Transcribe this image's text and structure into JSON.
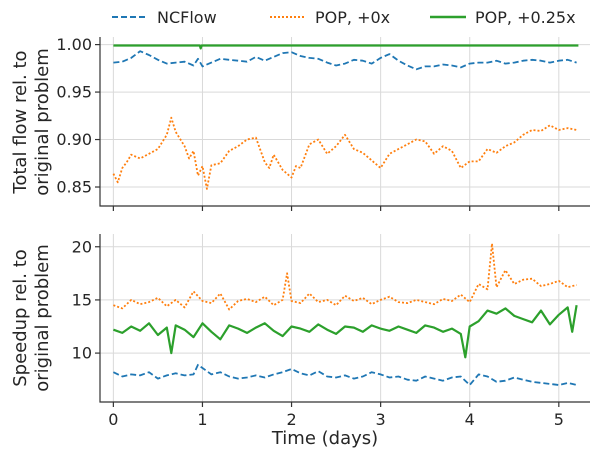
{
  "colors": {
    "ncflow": "#1f77b4",
    "pop0": "#ff7f0e",
    "pop025": "#2ca02c"
  },
  "chart_data": {
    "type": "line",
    "legend": {
      "placement": "top",
      "entries": [
        {
          "name": "NCFlow",
          "style": "dashed",
          "color": "#1f77b4"
        },
        {
          "name": "POP, +0x",
          "style": "dotted",
          "color": "#ff7f0e"
        },
        {
          "name": "POP, +0.25x",
          "style": "solid",
          "color": "#2ca02c"
        }
      ]
    },
    "xlabel": "Time (days)",
    "xlim": [
      -0.15,
      5.35
    ],
    "xticks": [
      0,
      1,
      2,
      3,
      4,
      5
    ],
    "xticklabels": [
      "0",
      "1",
      "2",
      "3",
      "4",
      "5"
    ],
    "grid": true,
    "panels": [
      {
        "ylabel": [
          "Total flow rel. to",
          "original problem"
        ],
        "ylim": [
          0.83,
          1.008
        ],
        "yticks": [
          0.85,
          0.9,
          0.95,
          1.0
        ],
        "yticklabels": [
          "0.85",
          "0.90",
          "0.95",
          "1.00"
        ],
        "series": [
          {
            "name": "NCFlow",
            "style": "dashed",
            "color": "#1f77b4",
            "x": [
              0,
              0.1,
              0.2,
              0.3,
              0.4,
              0.5,
              0.6,
              0.7,
              0.8,
              0.9,
              0.95,
              1.0,
              1.1,
              1.2,
              1.3,
              1.4,
              1.5,
              1.6,
              1.7,
              1.8,
              1.9,
              2.0,
              2.1,
              2.2,
              2.3,
              2.4,
              2.5,
              2.6,
              2.7,
              2.8,
              2.9,
              3.0,
              3.1,
              3.2,
              3.3,
              3.4,
              3.5,
              3.6,
              3.7,
              3.8,
              3.9,
              4.0,
              4.1,
              4.2,
              4.3,
              4.4,
              4.5,
              4.6,
              4.7,
              4.8,
              4.9,
              5.0,
              5.1,
              5.2
            ],
            "y": [
              0.981,
              0.982,
              0.986,
              0.993,
              0.989,
              0.984,
              0.98,
              0.981,
              0.982,
              0.978,
              0.985,
              0.977,
              0.981,
              0.985,
              0.984,
              0.983,
              0.982,
              0.987,
              0.983,
              0.987,
              0.991,
              0.992,
              0.988,
              0.986,
              0.985,
              0.981,
              0.978,
              0.98,
              0.984,
              0.983,
              0.98,
              0.986,
              0.99,
              0.983,
              0.978,
              0.974,
              0.977,
              0.977,
              0.979,
              0.978,
              0.976,
              0.98,
              0.981,
              0.981,
              0.983,
              0.98,
              0.981,
              0.983,
              0.984,
              0.983,
              0.981,
              0.983,
              0.984,
              0.981
            ]
          },
          {
            "name": "POP, +0x",
            "style": "dotted",
            "color": "#ff7f0e",
            "x": [
              0,
              0.05,
              0.1,
              0.15,
              0.2,
              0.3,
              0.4,
              0.5,
              0.6,
              0.65,
              0.7,
              0.8,
              0.85,
              0.9,
              0.95,
              1.0,
              1.05,
              1.1,
              1.2,
              1.3,
              1.4,
              1.5,
              1.6,
              1.7,
              1.75,
              1.8,
              1.9,
              2.0,
              2.05,
              2.1,
              2.2,
              2.3,
              2.4,
              2.5,
              2.6,
              2.7,
              2.8,
              2.9,
              3.0,
              3.1,
              3.2,
              3.3,
              3.4,
              3.5,
              3.6,
              3.7,
              3.8,
              3.9,
              4.0,
              4.1,
              4.2,
              4.3,
              4.4,
              4.5,
              4.6,
              4.7,
              4.8,
              4.9,
              5.0,
              5.1,
              5.2
            ],
            "y": [
              0.864,
              0.855,
              0.87,
              0.876,
              0.884,
              0.88,
              0.885,
              0.89,
              0.905,
              0.923,
              0.908,
              0.893,
              0.88,
              0.888,
              0.862,
              0.872,
              0.848,
              0.873,
              0.875,
              0.888,
              0.893,
              0.9,
              0.902,
              0.876,
              0.87,
              0.884,
              0.868,
              0.86,
              0.872,
              0.87,
              0.895,
              0.9,
              0.885,
              0.893,
              0.905,
              0.89,
              0.886,
              0.878,
              0.87,
              0.885,
              0.89,
              0.895,
              0.9,
              0.898,
              0.885,
              0.893,
              0.888,
              0.87,
              0.877,
              0.877,
              0.89,
              0.886,
              0.893,
              0.897,
              0.905,
              0.91,
              0.909,
              0.915,
              0.91,
              0.912,
              0.91
            ]
          },
          {
            "name": "POP, +0.25x",
            "style": "solid",
            "color": "#2ca02c",
            "x": [
              0,
              0.5,
              0.97,
              0.98,
              0.99,
              1.5,
              2.0,
              2.5,
              3.0,
              3.5,
              4.0,
              4.5,
              5.0,
              5.22
            ],
            "y": [
              0.999,
              0.999,
              0.999,
              0.996,
              0.999,
              0.999,
              0.999,
              0.999,
              0.999,
              0.999,
              0.999,
              0.999,
              0.999,
              0.999
            ]
          }
        ]
      },
      {
        "ylabel": [
          "Speedup rel. to",
          "original problem"
        ],
        "ylim": [
          5.4,
          21.2
        ],
        "yticks": [
          10,
          15,
          20
        ],
        "yticklabels": [
          "10",
          "15",
          "20"
        ],
        "series": [
          {
            "name": "NCFlow",
            "style": "dashed",
            "color": "#1f77b4",
            "x": [
              0,
              0.1,
              0.2,
              0.3,
              0.4,
              0.5,
              0.6,
              0.7,
              0.8,
              0.9,
              0.95,
              1.0,
              1.1,
              1.2,
              1.3,
              1.4,
              1.5,
              1.6,
              1.7,
              1.8,
              1.9,
              2.0,
              2.1,
              2.2,
              2.3,
              2.4,
              2.5,
              2.6,
              2.7,
              2.8,
              2.9,
              3.0,
              3.1,
              3.2,
              3.3,
              3.4,
              3.5,
              3.6,
              3.7,
              3.8,
              3.9,
              4.0,
              4.1,
              4.2,
              4.3,
              4.4,
              4.5,
              4.6,
              4.7,
              4.8,
              4.9,
              5.0,
              5.1,
              5.2
            ],
            "y": [
              8.2,
              7.8,
              8.0,
              7.9,
              8.2,
              7.6,
              7.9,
              8.1,
              7.9,
              8.0,
              8.9,
              8.6,
              8.0,
              8.2,
              7.8,
              7.6,
              7.7,
              7.9,
              7.7,
              8.0,
              8.2,
              8.5,
              8.1,
              7.9,
              8.3,
              7.8,
              7.7,
              7.9,
              7.6,
              7.8,
              8.2,
              8.0,
              7.7,
              7.8,
              7.5,
              7.4,
              7.8,
              7.6,
              7.4,
              7.7,
              7.8,
              7.0,
              8.0,
              7.8,
              7.3,
              7.4,
              7.7,
              7.5,
              7.3,
              7.2,
              7.1,
              7.0,
              7.2,
              7.0
            ]
          },
          {
            "name": "POP, +0x",
            "style": "dotted",
            "color": "#ff7f0e",
            "x": [
              0,
              0.1,
              0.2,
              0.3,
              0.4,
              0.5,
              0.6,
              0.7,
              0.8,
              0.9,
              1.0,
              1.1,
              1.2,
              1.3,
              1.4,
              1.5,
              1.6,
              1.7,
              1.8,
              1.9,
              1.95,
              2.0,
              2.1,
              2.2,
              2.3,
              2.4,
              2.5,
              2.6,
              2.7,
              2.8,
              2.9,
              3.0,
              3.1,
              3.2,
              3.3,
              3.4,
              3.5,
              3.6,
              3.7,
              3.8,
              3.9,
              4.0,
              4.1,
              4.2,
              4.25,
              4.3,
              4.4,
              4.5,
              4.6,
              4.7,
              4.8,
              4.9,
              5.0,
              5.1,
              5.2
            ],
            "y": [
              14.5,
              14.2,
              15.0,
              14.6,
              14.8,
              15.2,
              14.4,
              15.0,
              14.3,
              15.8,
              14.9,
              14.7,
              15.6,
              14.1,
              14.9,
              15.1,
              14.8,
              15.3,
              14.5,
              15.0,
              17.5,
              14.9,
              14.7,
              15.6,
              14.8,
              15.0,
              14.5,
              15.4,
              14.9,
              15.2,
              14.6,
              15.0,
              15.3,
              14.8,
              14.7,
              15.0,
              14.8,
              14.6,
              15.1,
              14.9,
              15.5,
              14.8,
              16.5,
              16.0,
              20.3,
              16.2,
              17.8,
              16.5,
              16.9,
              17.0,
              16.3,
              16.5,
              16.8,
              16.2,
              16.4
            ]
          },
          {
            "name": "POP, +0.25x",
            "style": "solid",
            "color": "#2ca02c",
            "x": [
              0,
              0.1,
              0.2,
              0.3,
              0.4,
              0.5,
              0.6,
              0.65,
              0.7,
              0.8,
              0.9,
              1.0,
              1.1,
              1.2,
              1.3,
              1.4,
              1.5,
              1.6,
              1.7,
              1.8,
              1.9,
              2.0,
              2.1,
              2.2,
              2.3,
              2.4,
              2.5,
              2.6,
              2.7,
              2.8,
              2.9,
              3.0,
              3.1,
              3.2,
              3.3,
              3.4,
              3.5,
              3.6,
              3.7,
              3.8,
              3.9,
              3.95,
              4.0,
              4.1,
              4.2,
              4.3,
              4.4,
              4.5,
              4.6,
              4.7,
              4.8,
              4.9,
              5.0,
              5.1,
              5.15,
              5.2
            ],
            "y": [
              12.2,
              11.9,
              12.5,
              12.1,
              12.8,
              11.7,
              12.4,
              10.0,
              12.6,
              12.2,
              11.5,
              12.8,
              12.0,
              11.3,
              12.6,
              12.3,
              11.9,
              12.4,
              12.8,
              12.1,
              11.6,
              12.5,
              12.3,
              12.0,
              12.7,
              12.2,
              11.8,
              12.5,
              12.4,
              12.0,
              12.6,
              12.3,
              12.1,
              12.5,
              12.2,
              11.9,
              12.6,
              12.4,
              12.0,
              12.3,
              11.8,
              9.6,
              12.5,
              13.0,
              14.0,
              13.7,
              14.2,
              13.5,
              13.2,
              12.9,
              14.0,
              12.7,
              13.6,
              14.3,
              12.0,
              14.5
            ]
          }
        ]
      }
    ]
  }
}
